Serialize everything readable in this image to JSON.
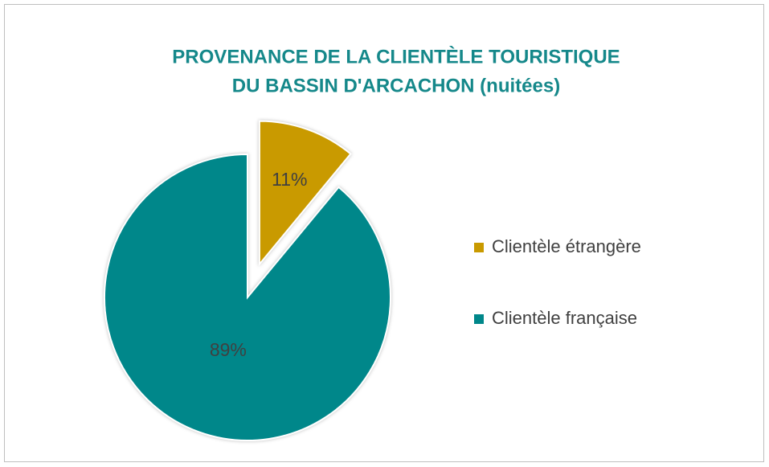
{
  "chart_data": {
    "type": "pie",
    "title": [
      "PROVENANCE DE LA CLIENTÈLE TOURISTIQUE",
      "DU BASSIN D'ARCACHON (nuitées)"
    ],
    "categories": [
      "Clientèle étrangère",
      "Clientèle française"
    ],
    "values": [
      11,
      89
    ],
    "value_labels": [
      "11%",
      "89%"
    ],
    "colors": [
      "#c99a00",
      "#00878a"
    ],
    "exploded": [
      true,
      false
    ],
    "legend": "right"
  }
}
